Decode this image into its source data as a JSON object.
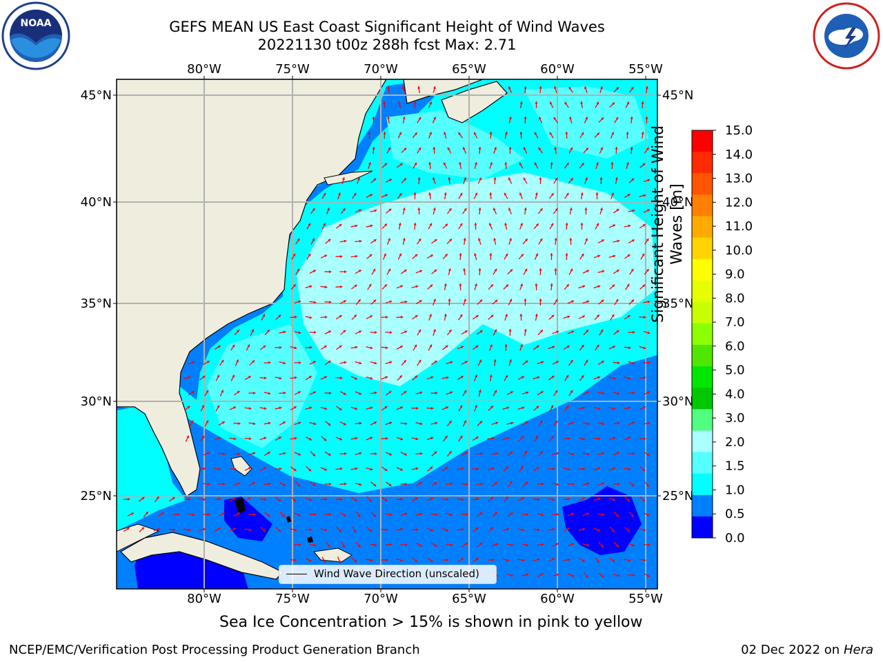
{
  "title": {
    "line1": "GEFS MEAN US East Coast Significant Height of Wind Waves",
    "line2": "20221130 t00z 288h fcst   Max: 2.71"
  },
  "map": {
    "lon_labels": [
      "80°W",
      "75°W",
      "70°W",
      "65°W",
      "60°W",
      "55°W"
    ],
    "lat_labels": [
      "45°N",
      "40°N",
      "35°N",
      "30°N",
      "25°N"
    ],
    "legend_label": "Wind Wave Direction (unscaled)",
    "arrow_color": "#ff0000",
    "land_color": "#efedde"
  },
  "colorbar": {
    "label": "Significant Height of Wind Waves [m]",
    "ticks": [
      "15.0",
      "14.0",
      "13.0",
      "12.0",
      "11.0",
      "10.0",
      "9.0",
      "8.0",
      "7.0",
      "6.0",
      "5.0",
      "4.0",
      "3.0",
      "2.0",
      "1.5",
      "1.0",
      "0.5",
      "0.0"
    ],
    "colors": [
      "#ff0000",
      "#ff2a00",
      "#ff5500",
      "#ff8000",
      "#ffaa00",
      "#ffd400",
      "#ffff00",
      "#e6ff00",
      "#c8ff00",
      "#8cff00",
      "#50e600",
      "#00e600",
      "#00c800",
      "#50ff80",
      "#aaffff",
      "#55ffff",
      "#00ffff",
      "#0080ff",
      "#0000ff"
    ]
  },
  "notes": {
    "ice": "Sea Ice Concentration > 15% is shown in pink to yellow",
    "footer_left": "NCEP/EMC/Verification Post Processing Product Generation Branch",
    "footer_date": "02 Dec 2022 on",
    "footer_machine": "Hera"
  }
}
